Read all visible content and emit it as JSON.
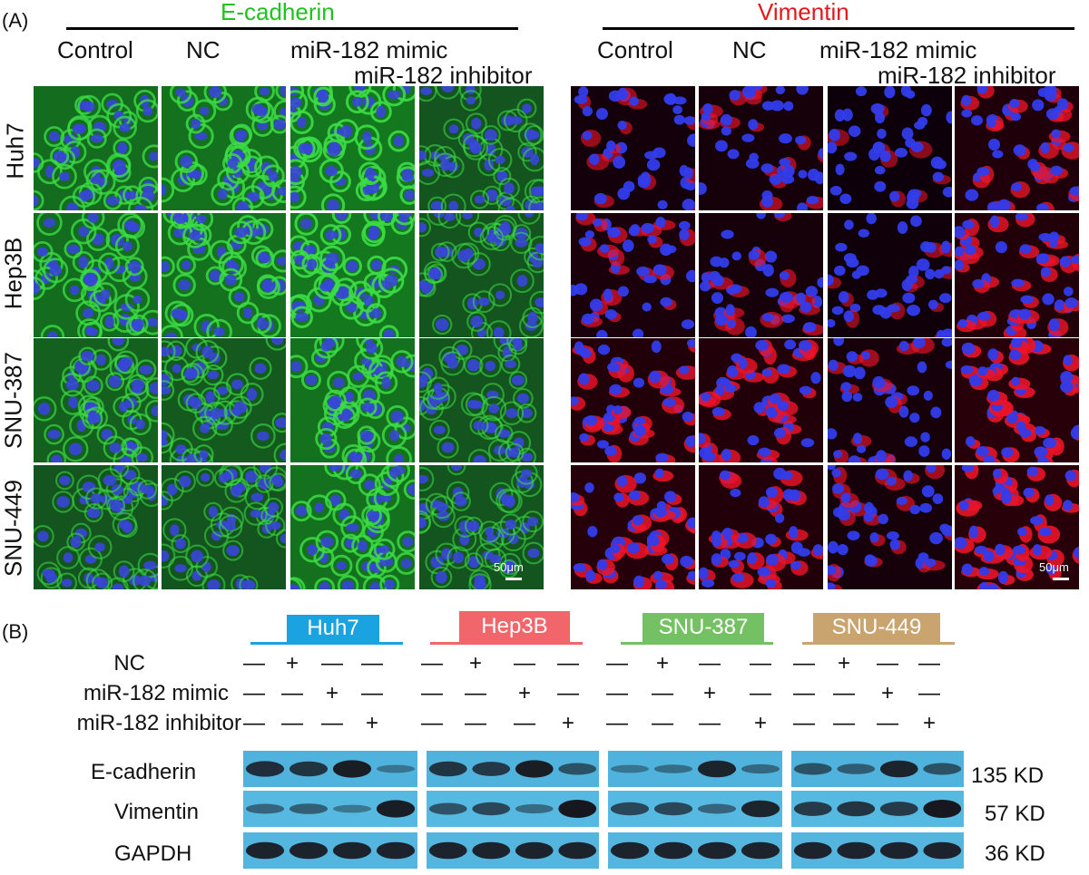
{
  "panelA": {
    "letter": "(A)",
    "stains": [
      {
        "name": "E-cadherin",
        "color": "#1fc21f"
      },
      {
        "name": "Vimentin",
        "color": "#e01a1a"
      }
    ],
    "columns": [
      {
        "label": "Control"
      },
      {
        "label": "NC"
      },
      {
        "label": "miR-182 mimic"
      },
      {
        "label": "miR-182 inhibitor"
      }
    ],
    "rows": [
      "Huh7",
      "Hep3B",
      "SNU-387",
      "SNU-449"
    ],
    "scale_bar": "50μm"
  },
  "panelB": {
    "letter": "(B)",
    "cell_lines": [
      {
        "name": "Huh7",
        "color": "#1aa3e0"
      },
      {
        "name": "Hep3B",
        "color": "#f0666a"
      },
      {
        "name": "SNU-387",
        "color": "#74c163"
      },
      {
        "name": "SNU-449",
        "color": "#c9a46e"
      }
    ],
    "treatments": [
      "NC",
      "miR-182 mimic",
      "miR-182 inhibitor"
    ],
    "symbols": {
      "minus": "—",
      "plus": "+"
    },
    "proteins": [
      {
        "name": "E-cadherin",
        "kd": "135 KD"
      },
      {
        "name": "Vimentin",
        "kd": "57 KD"
      },
      {
        "name": "GAPDH",
        "kd": "36 KD"
      }
    ]
  }
}
